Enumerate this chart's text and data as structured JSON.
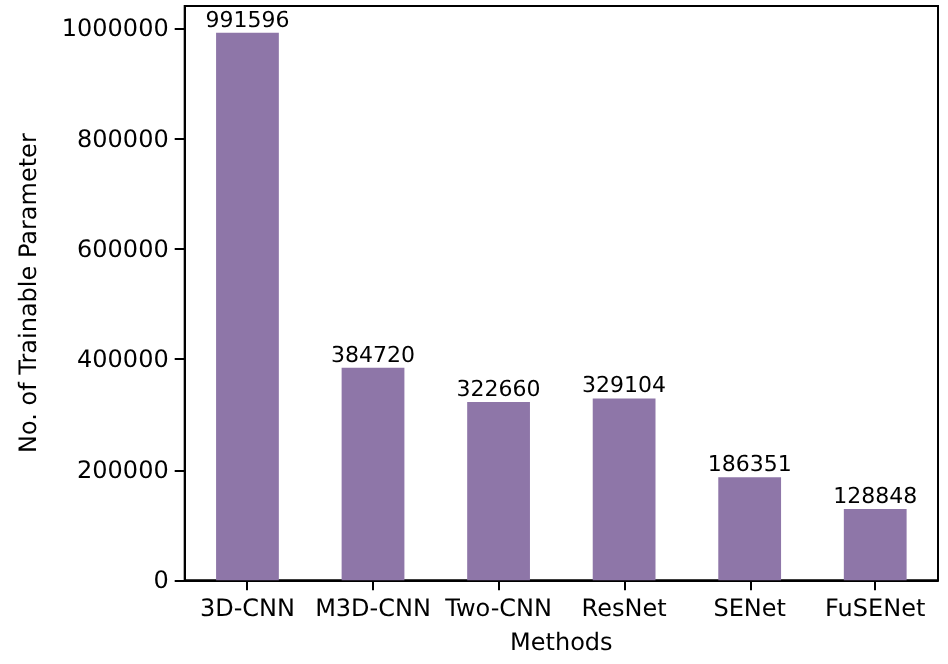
{
  "chart_data": {
    "type": "bar",
    "xlabel": "Methods",
    "ylabel": "No. of Trainable Parameter",
    "categories": [
      "3D-CNN",
      "M3D-CNN",
      "Two-CNN",
      "ResNet",
      "SENet",
      "FuSENet"
    ],
    "values": [
      991596,
      384720,
      322660,
      329104,
      186351,
      128848
    ],
    "color": "#8e76a8",
    "ylim": [
      0,
      1040000
    ],
    "yticks": [
      0,
      200000,
      400000,
      600000,
      800000,
      1000000
    ],
    "grid": false,
    "data_labels": true
  }
}
